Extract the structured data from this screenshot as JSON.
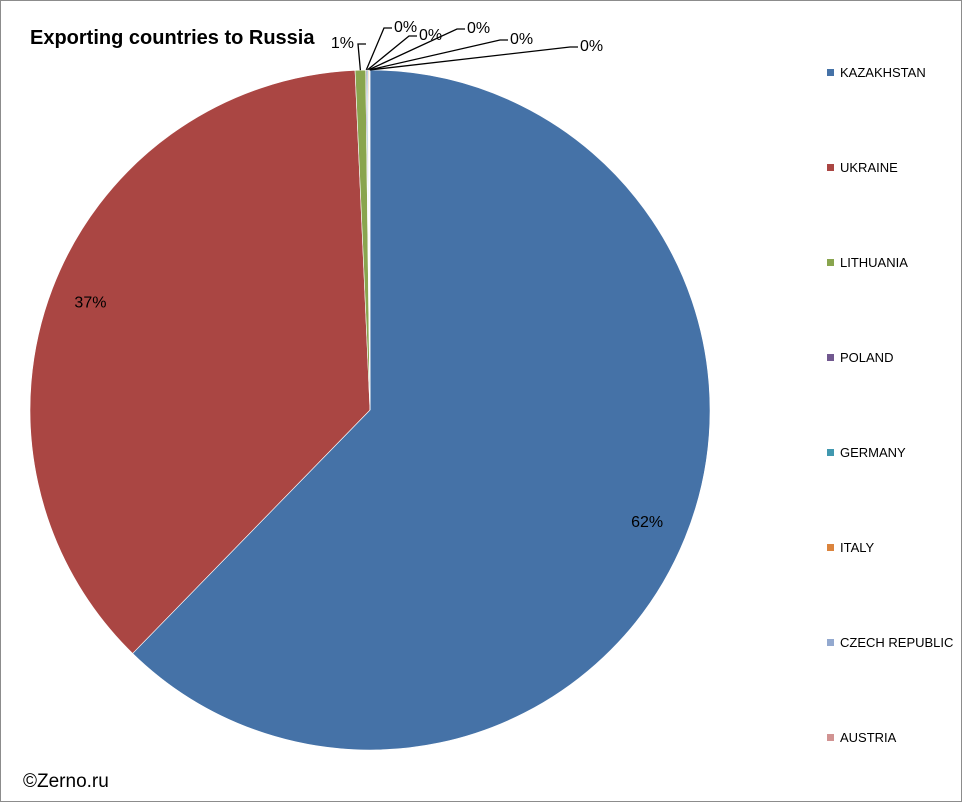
{
  "chart_data": {
    "type": "pie",
    "title": "Exporting countries to Russia",
    "categories": [
      "KAZAKHSTAN",
      "UKRAINE",
      "LITHUANIA",
      "POLAND",
      "GERMANY",
      "ITALY",
      "CZECH REPUBLIC",
      "AUSTRIA"
    ],
    "values": [
      62.3,
      37.0,
      0.5,
      0.05,
      0.05,
      0.04,
      0.03,
      0.03
    ],
    "data_labels": [
      "62%",
      "37%",
      "1%",
      "0%",
      "0%",
      "0%",
      "0%",
      "0%"
    ],
    "colors": [
      "#4572a7",
      "#aa4643",
      "#89a54e",
      "#71588f",
      "#4198af",
      "#db843d",
      "#93a9cf",
      "#d19392"
    ],
    "legend_position": "right"
  },
  "footer": {
    "copyright": "©Zerno.ru"
  }
}
